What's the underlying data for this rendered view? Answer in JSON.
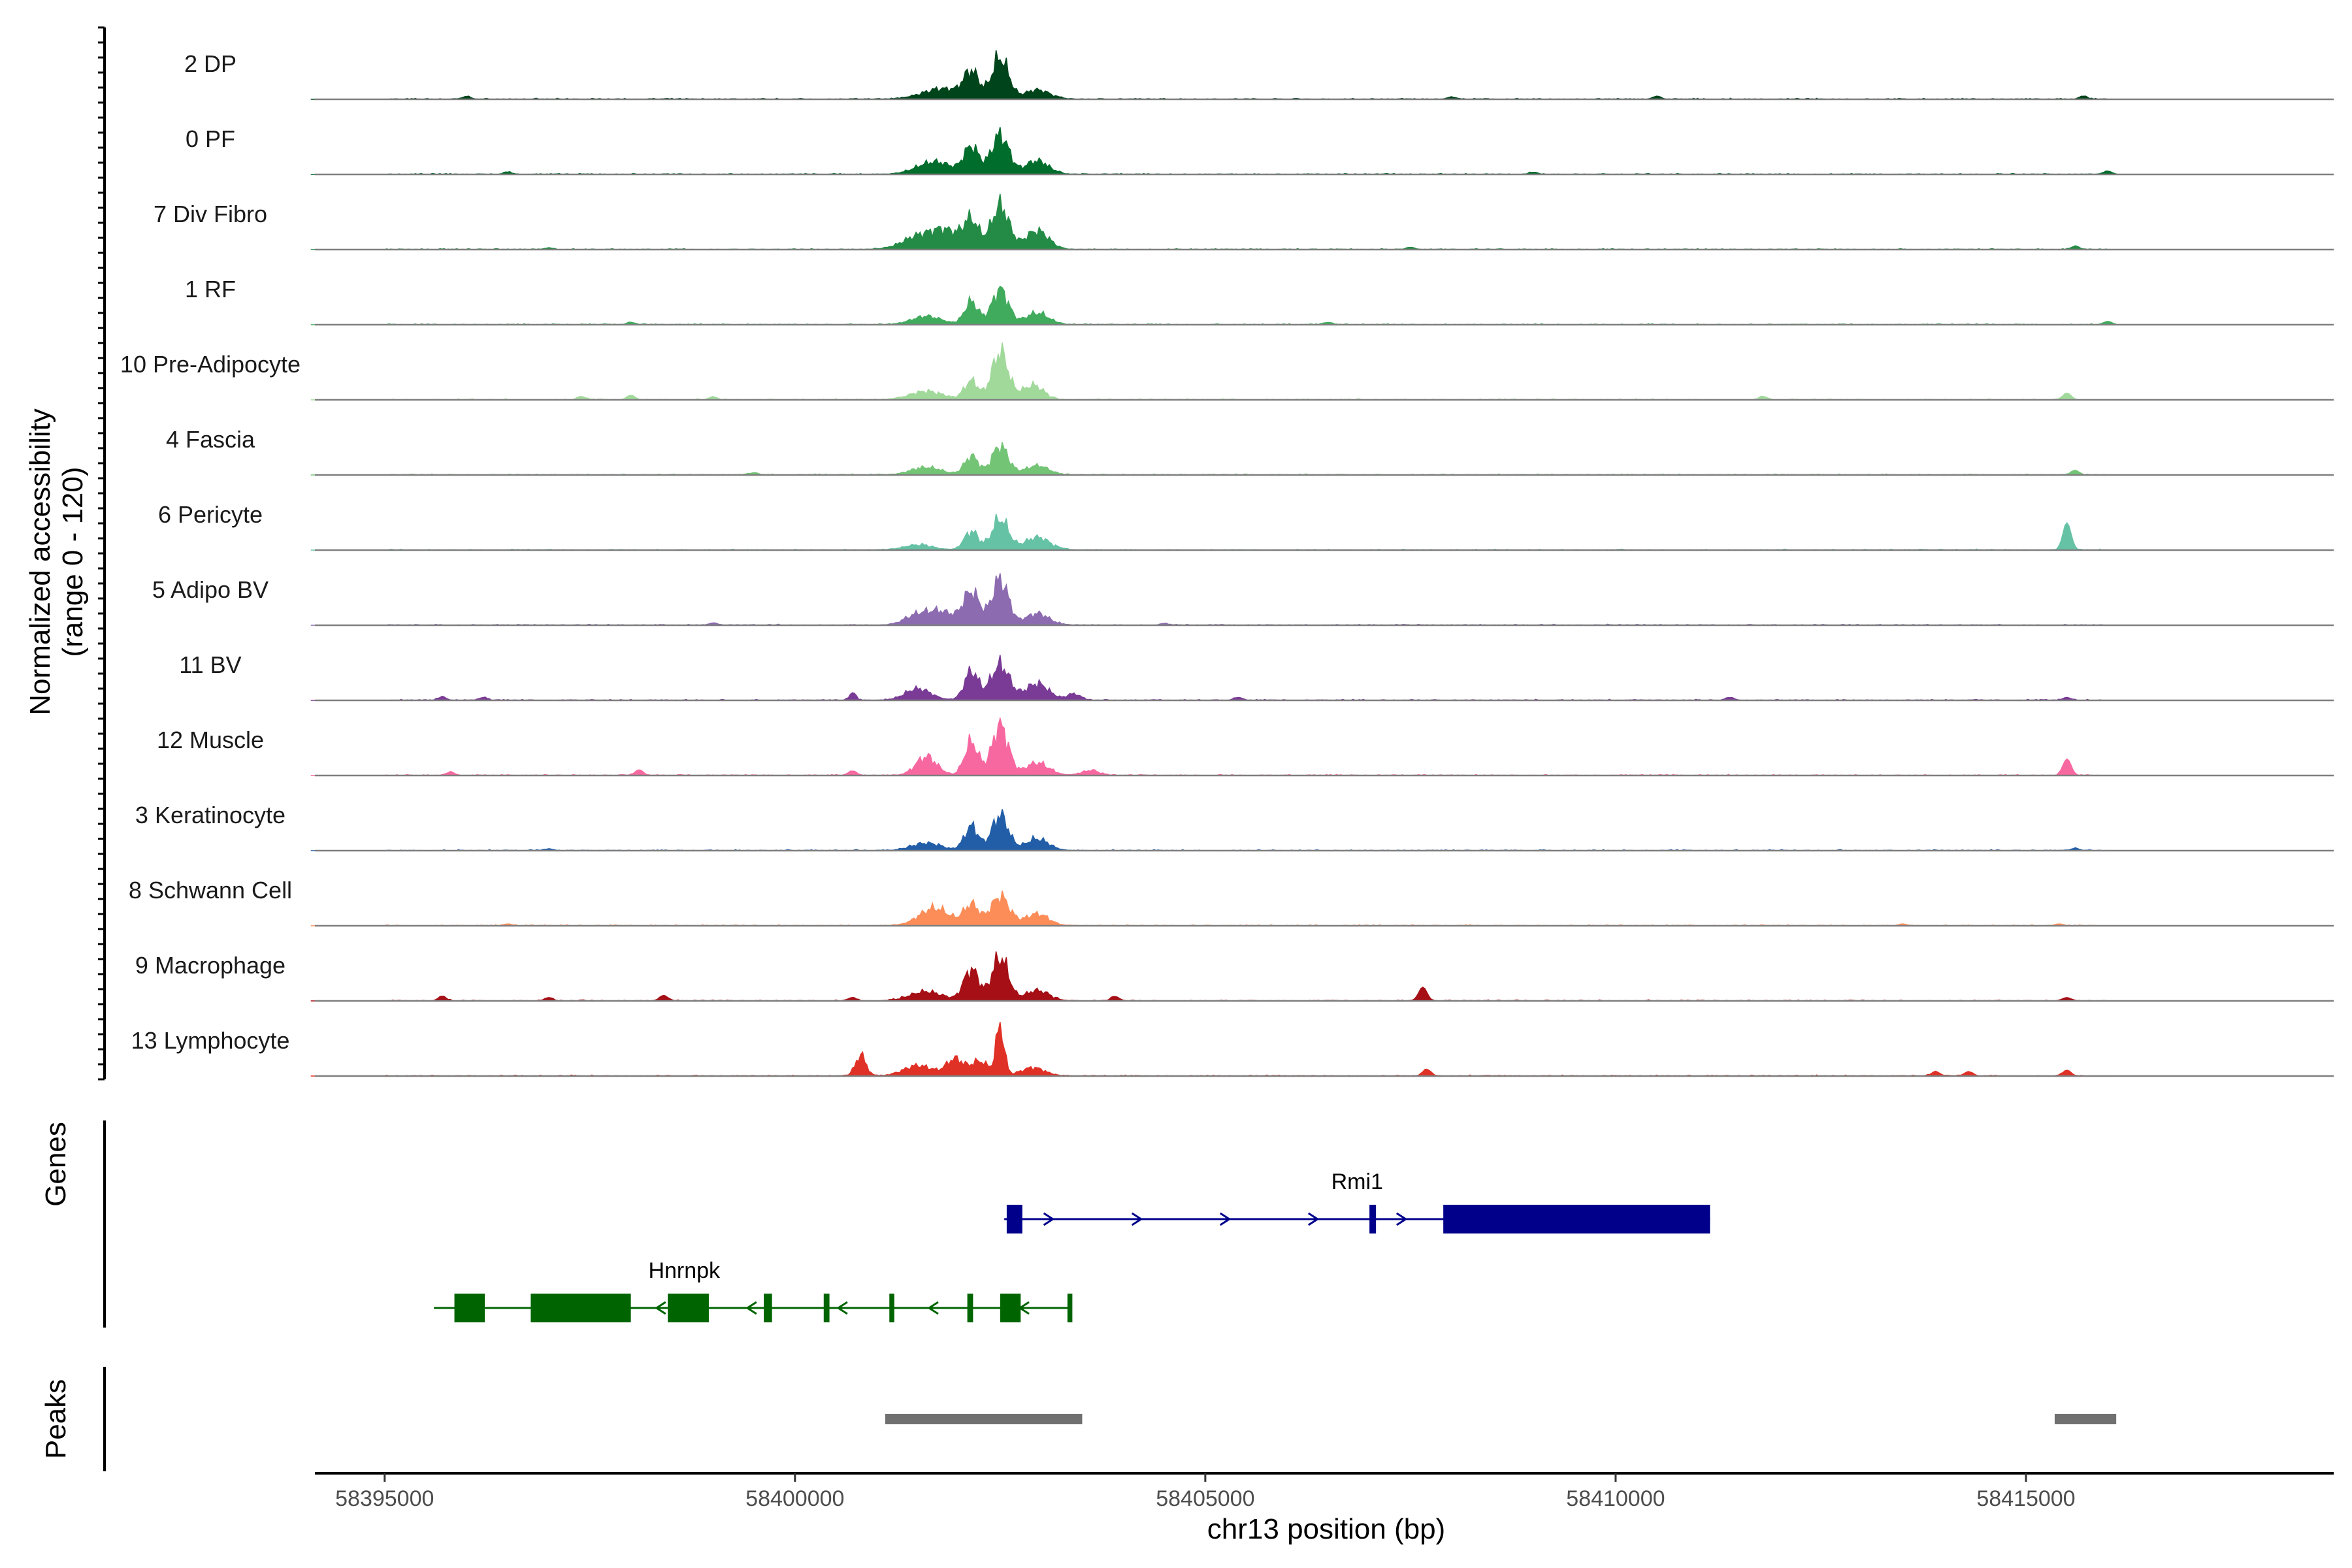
{
  "chart_data": {
    "type": "area",
    "chromosome": "chr13",
    "xlabel": "chr13 position (bp)",
    "ylabel": "Normalized accessibility",
    "ylabel_sub": "(range 0 - 120)",
    "ylim": [
      0,
      120
    ],
    "xlim": [
      58394150,
      58418750
    ],
    "x_ticks": [
      58395000,
      58400000,
      58405000,
      58410000,
      58415000
    ],
    "x_tick_labels": [
      "58395000",
      "58400000",
      "58405000",
      "58410000",
      "58415000"
    ],
    "genes_label": "Genes",
    "peaks_label": "Peaks",
    "series": [
      {
        "name": "2 DP",
        "color": "#00441b",
        "peaks": [
          [
            58401800,
            25,
            350
          ],
          [
            58402150,
            60,
            130
          ],
          [
            58402500,
            100,
            140
          ],
          [
            58402950,
            22,
            220
          ]
        ],
        "bumps": [
          [
            58396000,
            5
          ],
          [
            58408000,
            4
          ],
          [
            58410500,
            5
          ],
          [
            58415700,
            5
          ]
        ]
      },
      {
        "name": "0 PF",
        "color": "#006d2c",
        "peaks": [
          [
            58401700,
            30,
            300
          ],
          [
            58402150,
            65,
            130
          ],
          [
            58402500,
            95,
            150
          ],
          [
            58402950,
            32,
            200
          ]
        ],
        "bumps": [
          [
            58396500,
            4
          ],
          [
            58409000,
            4
          ],
          [
            58416000,
            6
          ]
        ]
      },
      {
        "name": "7 Div Fibro",
        "color": "#238b45",
        "peaks": [
          [
            58401500,
            30,
            280
          ],
          [
            58401850,
            42,
            250
          ],
          [
            58402150,
            65,
            130
          ],
          [
            58402500,
            105,
            150
          ],
          [
            58402950,
            45,
            200
          ]
        ],
        "bumps": [
          [
            58397000,
            3
          ],
          [
            58407500,
            4
          ],
          [
            58415600,
            6
          ]
        ]
      },
      {
        "name": "1 RF",
        "color": "#41ab5d",
        "peaks": [
          [
            58401600,
            20,
            250
          ],
          [
            58402150,
            55,
            120
          ],
          [
            58402500,
            85,
            140
          ],
          [
            58402950,
            28,
            200
          ]
        ],
        "bumps": [
          [
            58398000,
            4
          ],
          [
            58406500,
            4
          ],
          [
            58416000,
            6
          ]
        ]
      },
      {
        "name": "10 Pre-Adipocyte",
        "color": "#a1d99b",
        "peaks": [
          [
            58401600,
            20,
            280
          ],
          [
            58402150,
            45,
            120
          ],
          [
            58402500,
            115,
            140
          ],
          [
            58402900,
            35,
            180
          ]
        ],
        "bumps": [
          [
            58397400,
            6
          ],
          [
            58398000,
            8
          ],
          [
            58399000,
            5
          ],
          [
            58411800,
            6
          ],
          [
            58415500,
            12
          ]
        ]
      },
      {
        "name": "4 Fascia",
        "color": "#74c476",
        "peaks": [
          [
            58401600,
            18,
            260
          ],
          [
            58402150,
            45,
            120
          ],
          [
            58402500,
            70,
            140
          ],
          [
            58402950,
            22,
            200
          ]
        ],
        "bumps": [
          [
            58399500,
            4
          ],
          [
            58415600,
            8
          ]
        ]
      },
      {
        "name": "6 Pericyte",
        "color": "#66c2a5",
        "peaks": [
          [
            58401500,
            12,
            250
          ],
          [
            58402150,
            45,
            120
          ],
          [
            58402500,
            75,
            140
          ],
          [
            58402950,
            30,
            220
          ]
        ],
        "bumps": [
          [
            58415500,
            50
          ]
        ]
      },
      {
        "name": "5 Adipo BV",
        "color": "#8c6bb1",
        "peaks": [
          [
            58401500,
            25,
            220
          ],
          [
            58401800,
            30,
            220
          ],
          [
            58402150,
            80,
            140
          ],
          [
            58402500,
            110,
            140
          ],
          [
            58402950,
            28,
            200
          ]
        ],
        "bumps": [
          [
            58399000,
            4
          ],
          [
            58404500,
            3
          ]
        ]
      },
      {
        "name": "11 BV",
        "color": "#7a3b96",
        "peaks": [
          [
            58400700,
            18,
            60
          ],
          [
            58401500,
            28,
            220
          ],
          [
            58402150,
            70,
            120
          ],
          [
            58402500,
            85,
            160
          ],
          [
            58402950,
            40,
            200
          ],
          [
            58403400,
            15,
            120
          ]
        ],
        "bumps": [
          [
            58395700,
            6
          ],
          [
            58396200,
            5
          ],
          [
            58405400,
            5
          ],
          [
            58411400,
            5
          ],
          [
            58415500,
            5
          ]
        ]
      },
      {
        "name": "12 Muscle",
        "color": "#f768a1",
        "peaks": [
          [
            58401600,
            45,
            180
          ],
          [
            58402150,
            80,
            120
          ],
          [
            58402500,
            120,
            140
          ],
          [
            58402950,
            30,
            200
          ],
          [
            58403600,
            12,
            150
          ]
        ],
        "bumps": [
          [
            58395800,
            6
          ],
          [
            58398100,
            10
          ],
          [
            58400700,
            8
          ],
          [
            58415500,
            30
          ]
        ]
      },
      {
        "name": "3 Keratinocyte",
        "color": "#225ea8",
        "peaks": [
          [
            58401600,
            18,
            250
          ],
          [
            58402150,
            58,
            120
          ],
          [
            58402500,
            85,
            140
          ],
          [
            58402950,
            28,
            200
          ]
        ],
        "bumps": [
          [
            58397000,
            3
          ],
          [
            58415600,
            4
          ]
        ]
      },
      {
        "name": "8 Schwann Cell",
        "color": "#fc8d59",
        "peaks": [
          [
            58401700,
            42,
            260
          ],
          [
            58402150,
            50,
            130
          ],
          [
            58402500,
            70,
            160
          ],
          [
            58402950,
            28,
            200
          ]
        ],
        "bumps": [
          [
            58396500,
            3
          ],
          [
            58413500,
            3
          ],
          [
            58415400,
            3
          ]
        ]
      },
      {
        "name": "9 Macrophage",
        "color": "#a50f15",
        "peaks": [
          [
            58401600,
            22,
            280
          ],
          [
            58402150,
            75,
            130
          ],
          [
            58402500,
            105,
            140
          ],
          [
            58402950,
            25,
            200
          ]
        ],
        "bumps": [
          [
            58395700,
            8
          ],
          [
            58397000,
            6
          ],
          [
            58398400,
            10
          ],
          [
            58400700,
            6
          ],
          [
            58403900,
            8
          ],
          [
            58407650,
            25
          ],
          [
            58415500,
            6
          ]
        ]
      },
      {
        "name": "13 Lymphocyte",
        "color": "#e03126",
        "peaks": [
          [
            58400800,
            50,
            90
          ],
          [
            58401500,
            25,
            250
          ],
          [
            58401950,
            40,
            150
          ],
          [
            58402250,
            35,
            150
          ],
          [
            58402500,
            120,
            70
          ],
          [
            58402900,
            20,
            200
          ]
        ],
        "bumps": [
          [
            58407700,
            12
          ],
          [
            58413900,
            8
          ],
          [
            58414300,
            8
          ],
          [
            58415500,
            10
          ]
        ]
      }
    ],
    "genes": [
      {
        "name": "Rmi1",
        "strand": "+",
        "color": "#00008b",
        "start": 58402550,
        "end": 58411150,
        "exons": [
          [
            58402580,
            58402770
          ],
          [
            58407000,
            58407080
          ],
          [
            58407900,
            58411150
          ]
        ]
      },
      {
        "name": "Hnrnpk",
        "strand": "-",
        "color": "#006400",
        "start": 58395600,
        "end": 58403350,
        "exons": [
          [
            58395850,
            58396220
          ],
          [
            58396780,
            58398000
          ],
          [
            58398450,
            58398950
          ],
          [
            58399620,
            58399720
          ],
          [
            58400350,
            58400420
          ],
          [
            58401150,
            58401210
          ],
          [
            58402100,
            58402170
          ],
          [
            58402500,
            58402750
          ],
          [
            58403320,
            58403380
          ]
        ]
      }
    ],
    "peaks": [
      [
        58401100,
        58403500
      ],
      [
        58415350,
        58416100
      ]
    ]
  }
}
